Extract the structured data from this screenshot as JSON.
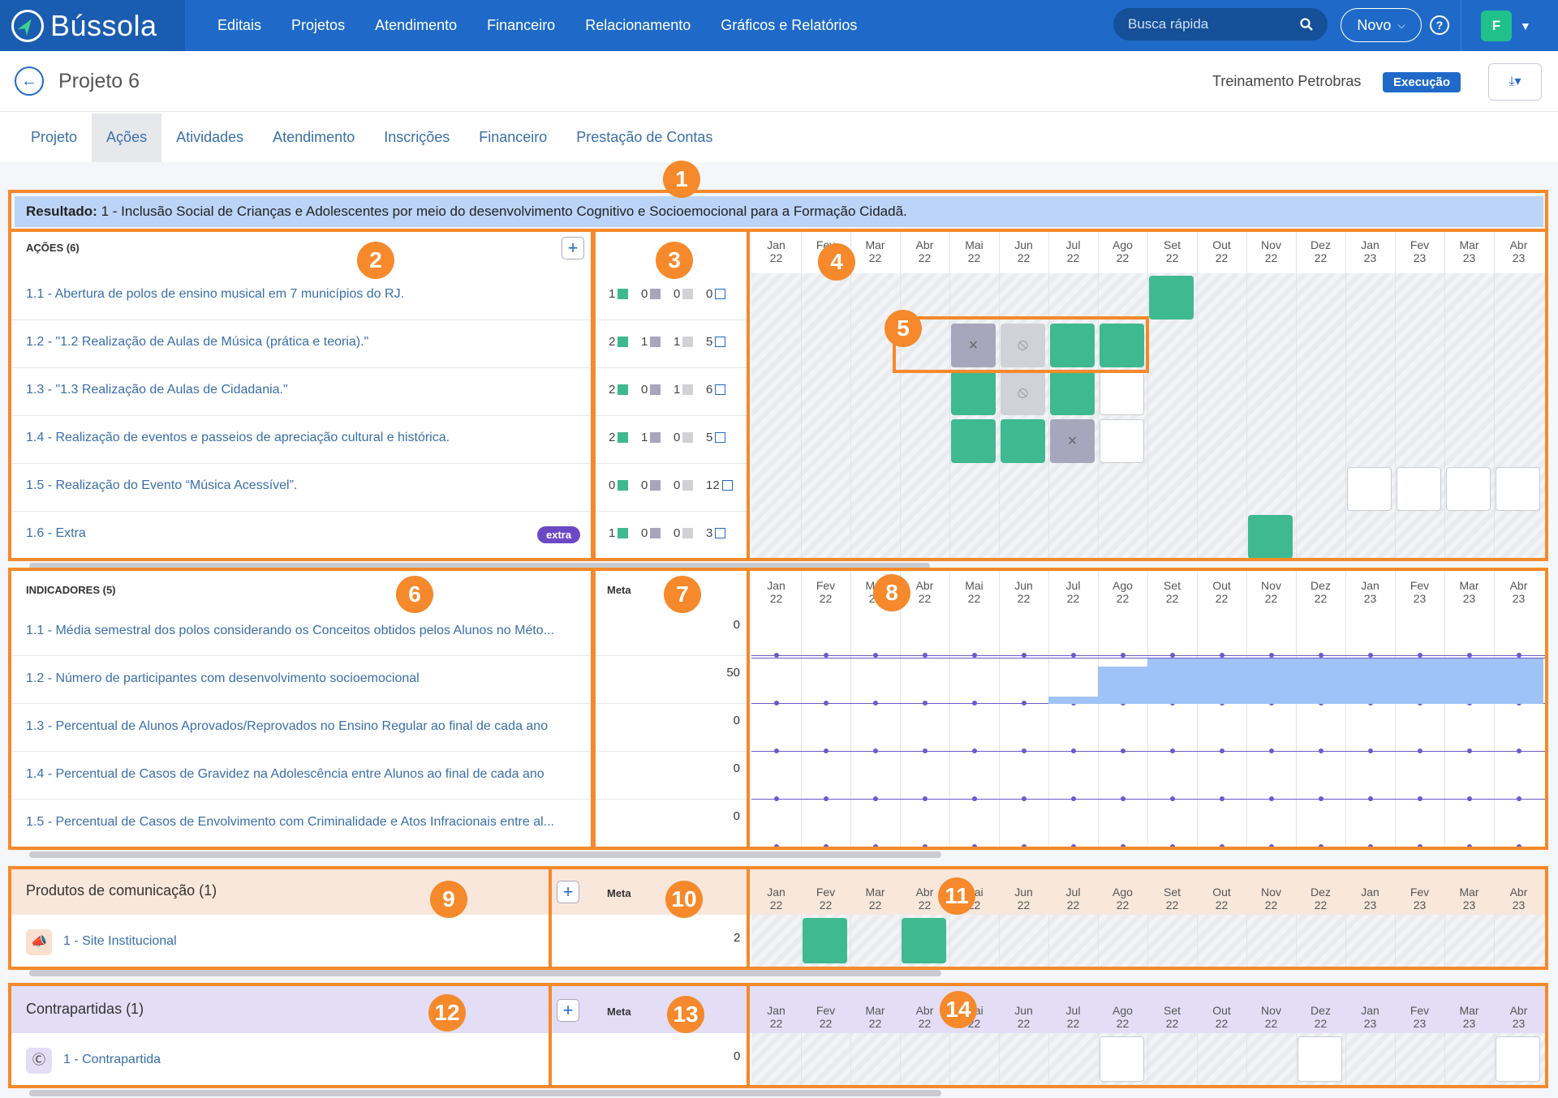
{
  "app": {
    "name": "Bússola"
  },
  "nav": [
    "Editais",
    "Projetos",
    "Atendimento",
    "Financeiro",
    "Relacionamento",
    "Gráficos e Relatórios"
  ],
  "search": {
    "placeholder": "Busca rápida"
  },
  "novo_label": "Novo",
  "user_initial": "F",
  "project": {
    "title": "Projeto 6",
    "training": "Treinamento Petrobras",
    "status": "Execução"
  },
  "tabs": [
    "Projeto",
    "Ações",
    "Atividades",
    "Atendimento",
    "Inscrições",
    "Financeiro",
    "Prestação de Contas"
  ],
  "active_tab": "Ações",
  "result": {
    "label": "Resultado:",
    "text": "1 - Inclusão Social de Crianças e Adolescentes por meio do desenvolvimento Cognitivo e Socioemocional para a Formação Cidadã."
  },
  "months": [
    [
      "Jan",
      "22"
    ],
    [
      "Fev",
      "22"
    ],
    [
      "Mar",
      "22"
    ],
    [
      "Abr",
      "22"
    ],
    [
      "Mai",
      "22"
    ],
    [
      "Jun",
      "22"
    ],
    [
      "Jul",
      "22"
    ],
    [
      "Ago",
      "22"
    ],
    [
      "Set",
      "22"
    ],
    [
      "Out",
      "22"
    ],
    [
      "Nov",
      "22"
    ],
    [
      "Dez",
      "22"
    ],
    [
      "Jan",
      "23"
    ],
    [
      "Fev",
      "23"
    ],
    [
      "Mar",
      "23"
    ],
    [
      "Abr",
      "23"
    ]
  ],
  "actions": {
    "header": "AÇÕES (6)",
    "items": [
      {
        "label": "1.1 - Abertura de polos de ensino musical em 7 municípios do RJ.",
        "counts": [
          "1",
          "0",
          "0",
          "0"
        ],
        "cells": {
          "8": "done"
        }
      },
      {
        "label": "1.2 - \"1.2 Realização de Aulas de Música (prática e teoria).\"",
        "counts": [
          "2",
          "1",
          "1",
          "5"
        ],
        "cells": {
          "4": "cancel",
          "5": "blocked",
          "6": "done",
          "7": "done"
        }
      },
      {
        "label": "1.3 - \"1.3 Realização de Aulas de Cidadania.\"",
        "counts": [
          "2",
          "0",
          "1",
          "6"
        ],
        "cells": {
          "4": "done",
          "5": "blocked",
          "6": "done",
          "7": "pend"
        }
      },
      {
        "label": "1.4 - Realização de eventos e passeios de apreciação cultural e histórica.",
        "counts": [
          "2",
          "1",
          "0",
          "5"
        ],
        "cells": {
          "4": "done",
          "5": "done",
          "6": "cancel",
          "7": "pend"
        }
      },
      {
        "label": "1.5 - Realização do Evento “Música Acessível”.",
        "counts": [
          "0",
          "0",
          "0",
          "12"
        ],
        "cells": {
          "12": "pend",
          "13": "pend",
          "14": "pend",
          "15": "pend"
        }
      },
      {
        "label": "1.6 - Extra",
        "counts": [
          "1",
          "0",
          "0",
          "3"
        ],
        "badge": "extra",
        "cells": {
          "10": "done"
        }
      }
    ]
  },
  "indicators": {
    "header": "INDICADORES (5)",
    "meta_label": "Meta",
    "items": [
      {
        "label": "1.1 - Média semestral dos polos considerando os Conceitos obtidos pelos Alunos no Méto...",
        "meta": "0"
      },
      {
        "label": "1.2 - Número de participantes com desenvolvimento socioemocional",
        "meta": "50"
      },
      {
        "label": "1.3 - Percentual de Alunos Aprovados/Reprovados no Ensino Regular ao final de cada ano",
        "meta": "0"
      },
      {
        "label": "1.4 - Percentual de Casos de Gravidez na Adolescência entre Alunos ao final de cada ano",
        "meta": "0"
      },
      {
        "label": "1.5 - Percentual de Casos de Envolvimento com Criminalidade e Atos Infracionais entre al...",
        "meta": "0"
      }
    ],
    "progress_1_2": [
      0,
      0,
      0,
      0,
      0,
      0,
      8,
      40,
      50,
      50,
      50,
      50,
      50,
      50,
      50,
      50
    ]
  },
  "products": {
    "header": "Produtos de comunicação (1)",
    "meta_label": "Meta",
    "item": "1 - Site Institucional",
    "meta": "2",
    "cells": {
      "1": "done",
      "3": "done"
    }
  },
  "counterparts": {
    "header": "Contrapartidas (1)",
    "meta_label": "Meta",
    "item": "1 - Contrapartida",
    "meta": "0",
    "cells": {
      "7": "pend",
      "11": "pend",
      "15": "pend"
    }
  },
  "extra_badge": "extra",
  "annotations": [
    "1",
    "2",
    "3",
    "4",
    "5",
    "6",
    "7",
    "8",
    "9",
    "10",
    "11",
    "12",
    "13",
    "14"
  ],
  "colors": {
    "done": "#3fb98f",
    "cancel": "#a7a6bd",
    "blocked": "#d1d2d8",
    "pending": "#ffffff",
    "primary": "#1f6ac8",
    "annotation": "#f5892b"
  }
}
